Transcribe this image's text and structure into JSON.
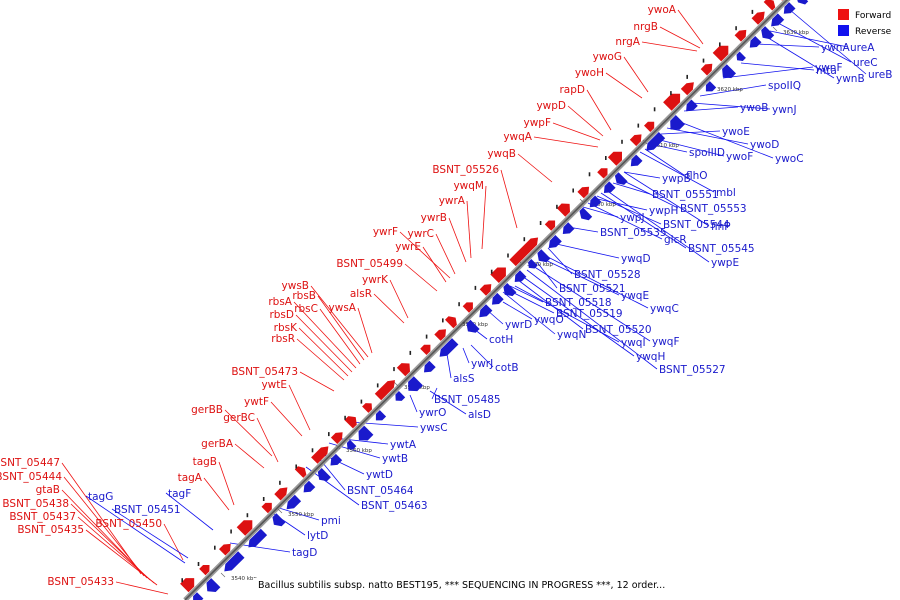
{
  "legend": {
    "forward_label": "Forward",
    "reverse_label": "Reverse",
    "forward_color": "#ee1111",
    "reverse_color": "#1111ee"
  },
  "caption": "Bacillus subtilis subsp. natto BEST195, *** SEQUENCING IN PROGRESS ***, 12 order...",
  "ticks": [
    "3540 kbp",
    "3550 kbp",
    "3560 kbp",
    "3570 kbp",
    "3580 kbp",
    "3590 kbp",
    "3600 kbp",
    "3610 kbp",
    "3620 kbp",
    "3630 kbp"
  ],
  "forward_genes": [
    "BSNT_05433",
    "BSNT_05435",
    "BSNT_05437",
    "BSNT_05438",
    "gtaB",
    "BSNT_05444",
    "BSNT_05447",
    "BSNT_05450",
    "tagA",
    "tagB",
    "gerBA",
    "gerBC",
    "gerBB",
    "ywtF",
    "ywtE",
    "BSNT_05473",
    "rbsR",
    "rbsK",
    "rbsD",
    "rbsA",
    "rbsC",
    "rbsB",
    "ywsB",
    "ywsA",
    "alsR",
    "ywrK",
    "BSNT_05499",
    "ywrE",
    "ywrF",
    "ywrC",
    "ywrB",
    "ywrA",
    "ywqM",
    "BSNT_05526",
    "ywqB",
    "ywqA",
    "ywpF",
    "ywpD",
    "rapD",
    "ywoH",
    "ywoG",
    "nrgA",
    "nrgB",
    "ywoA"
  ],
  "reverse_genes": [
    "tagG",
    "BSNT_05451",
    "tagF",
    "tagD",
    "lytD",
    "pmi",
    "BSNT_05463",
    "BSNT_05464",
    "ywtD",
    "ywtB",
    "ywtA",
    "ywsC",
    "ywrO",
    "alsD",
    "BSNT_05485",
    "alsS",
    "ywrJ",
    "cotB",
    "cotH",
    "ywrD",
    "ywqO",
    "ywqN",
    "BSNT_05519",
    "BSNT_05518",
    "BSNT_05520",
    "ywqI",
    "ywqH",
    "BSNT_05527",
    "ywqF",
    "BSNT_05521",
    "ywqE",
    "ywqC",
    "BSNT_05528",
    "ywqD",
    "BSNT_05535",
    "ywpJ",
    "glcR",
    "ywpH",
    "BSNT_05544",
    "BSNT_05545",
    "ywpE",
    "BSNT_05551",
    "BSNT_05553",
    "flhP",
    "ywpB",
    "mbl",
    "flhO",
    "spoIIID",
    "ywoF",
    "ywoE",
    "ywoD",
    "ywoC",
    "ywoB",
    "ywnJ",
    "spoIIQ",
    "ywnF",
    "mta",
    "ywnA",
    "ywnB",
    "ureA",
    "ureC",
    "ureB"
  ]
}
